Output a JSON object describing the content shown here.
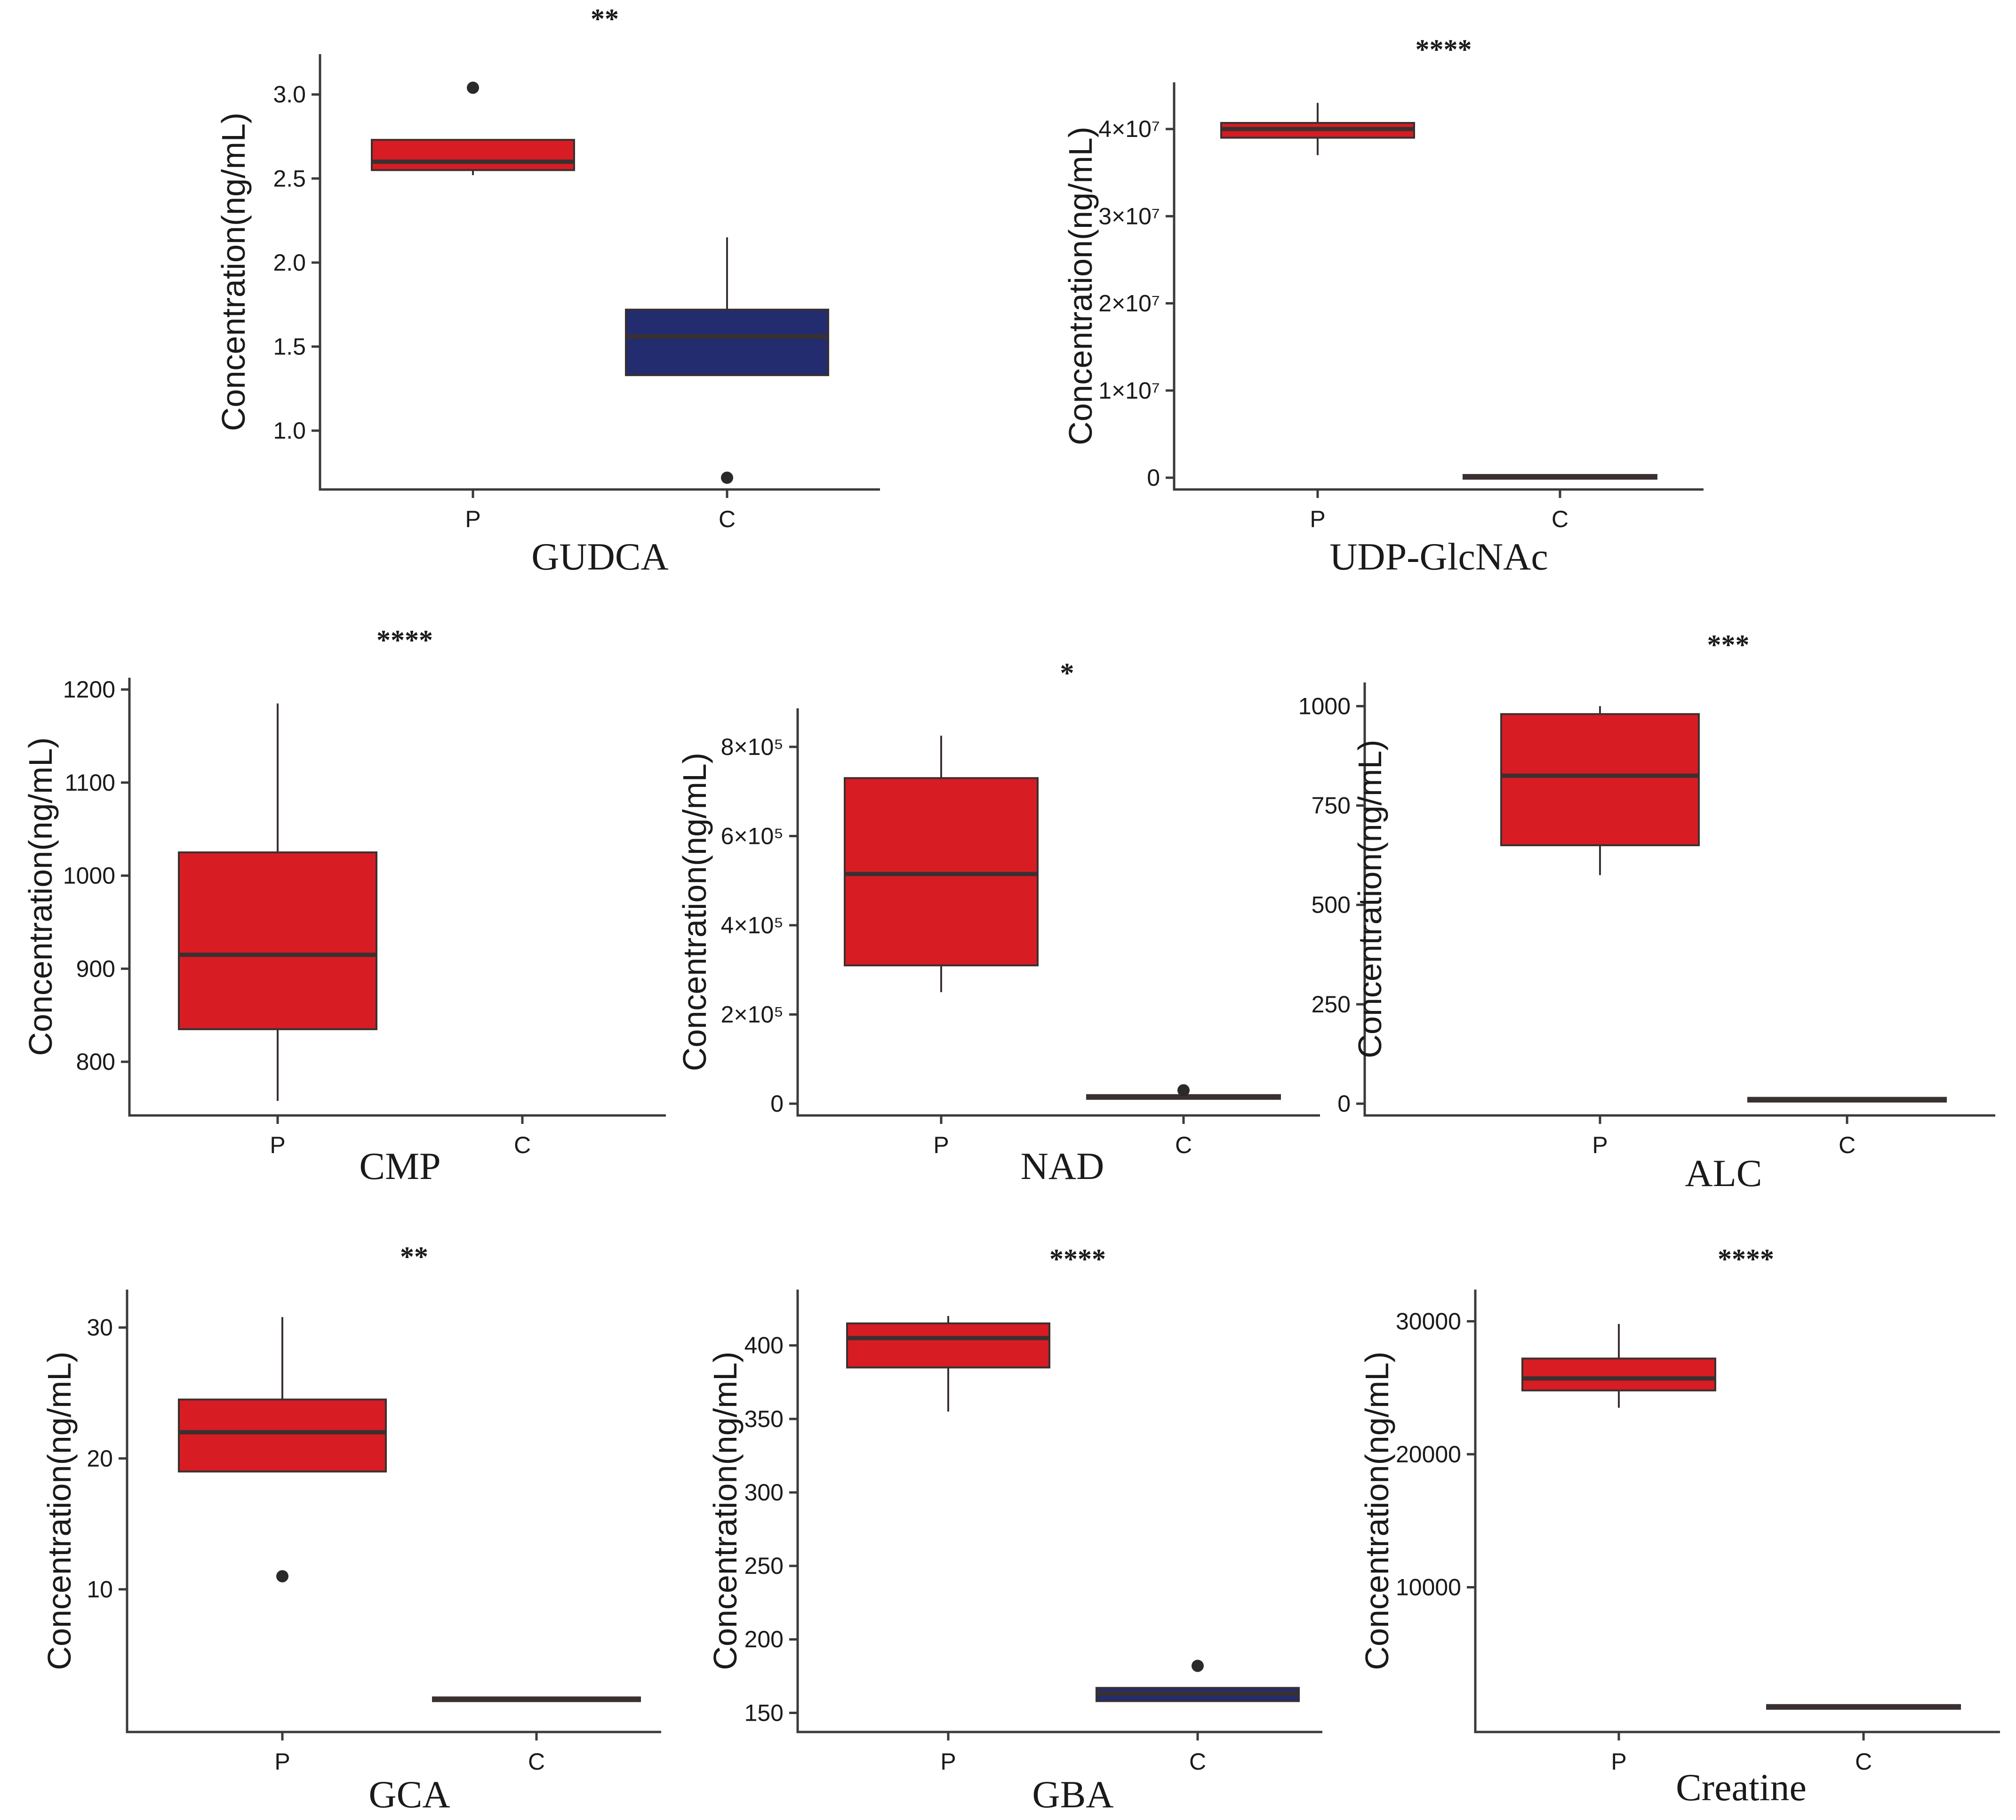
{
  "colors": {
    "P": "#d71c23",
    "C": "#232c6e",
    "median": "#3a3030",
    "outlier": "#2a2a2a",
    "axis": "#3a3a3a"
  },
  "chart_data": [
    {
      "type": "box",
      "title": "GUDCA",
      "ylabel": "Concentration(ng/mL)",
      "significance": "**",
      "categories": [
        "P",
        "C"
      ],
      "ylim": [
        0.72,
        3.17
      ],
      "yticks": [
        1.0,
        1.5,
        2.0,
        2.5,
        3.0
      ],
      "yticklabels": [
        "1.0",
        "1.5",
        "2.0",
        "2.5",
        "3.0"
      ],
      "boxes": [
        {
          "group": "P",
          "color": "#d71c23",
          "whisker_low": 2.52,
          "q1": 2.55,
          "median": 2.6,
          "q3": 2.73,
          "whisker_high": 2.73,
          "outliers": [
            3.04
          ]
        },
        {
          "group": "C",
          "color": "#232c6e",
          "whisker_low": 1.33,
          "q1": 1.33,
          "median": 1.56,
          "q3": 1.72,
          "whisker_high": 2.15,
          "outliers": [
            0.72
          ]
        }
      ]
    },
    {
      "type": "box",
      "title": "UDP-GlcNAc",
      "ylabel": "Concentration(ng/mL)",
      "significance": "****",
      "categories": [
        "P",
        "C"
      ],
      "ylim": [
        0,
        44000000
      ],
      "yticks": [
        0,
        10000000,
        20000000,
        30000000,
        40000000
      ],
      "yticklabels": [
        "0",
        "1×10⁷",
        "2×10⁷",
        "3×10⁷",
        "4×10⁷"
      ],
      "boxes": [
        {
          "group": "P",
          "color": "#d71c23",
          "whisker_low": 37000000,
          "q1": 39000000,
          "median": 40000000,
          "q3": 40700000,
          "whisker_high": 43000000,
          "outliers": []
        },
        {
          "group": "C",
          "color": "#232c6e",
          "whisker_low": 100000,
          "q1": 100000,
          "median": 100000,
          "q3": 100000,
          "whisker_high": 100000,
          "outliers": []
        }
      ]
    },
    {
      "type": "box",
      "title": "CMP",
      "ylabel": "Concentration(ng/mL)",
      "significance": "****",
      "categories": [
        "P",
        "C"
      ],
      "ylim": [
        755,
        1200
      ],
      "yticks": [
        800,
        900,
        1000,
        1100,
        1200
      ],
      "yticklabels": [
        "800",
        "900",
        "1000",
        "1100",
        "1200"
      ],
      "boxes": [
        {
          "group": "P",
          "color": "#d71c23",
          "whisker_low": 758,
          "q1": 835,
          "median": 915,
          "q3": 1025,
          "whisker_high": 1185,
          "outliers": []
        }
      ]
    },
    {
      "type": "box",
      "title": "NAD",
      "ylabel": "Concentration(ng/mL)",
      "significance": "*",
      "categories": [
        "P",
        "C"
      ],
      "ylim": [
        0,
        860000
      ],
      "yticks": [
        0,
        200000,
        400000,
        600000,
        800000
      ],
      "yticklabels": [
        "0",
        "2×10⁵",
        "4×10⁵",
        "6×10⁵",
        "8×10⁵"
      ],
      "boxes": [
        {
          "group": "P",
          "color": "#d71c23",
          "whisker_low": 250000,
          "q1": 310000,
          "median": 515000,
          "q3": 730000,
          "whisker_high": 825000,
          "outliers": []
        },
        {
          "group": "C",
          "color": "#232c6e",
          "whisker_low": 15000,
          "q1": 15000,
          "median": 15000,
          "q3": 15000,
          "whisker_high": 15000,
          "outliers": [
            30000
          ]
        }
      ]
    },
    {
      "type": "box",
      "title": "ALC",
      "ylabel": "Concentration(ng/mL)",
      "significance": "***",
      "categories": [
        "P",
        "C"
      ],
      "ylim": [
        0,
        1030
      ],
      "yticks": [
        0,
        250,
        500,
        750,
        1000
      ],
      "yticklabels": [
        "0",
        "250",
        "500",
        "750",
        "1000"
      ],
      "boxes": [
        {
          "group": "P",
          "color": "#d71c23",
          "whisker_low": 575,
          "q1": 650,
          "median": 825,
          "q3": 980,
          "whisker_high": 1000,
          "outliers": []
        },
        {
          "group": "C",
          "color": "#232c6e",
          "whisker_low": 10,
          "q1": 10,
          "median": 10,
          "q3": 10,
          "whisker_high": 10,
          "outliers": []
        }
      ]
    },
    {
      "type": "box",
      "title": "GCA",
      "ylabel": "Concentration(ng/mL)",
      "significance": "**",
      "categories": [
        "P",
        "C"
      ],
      "ylim": [
        0,
        32
      ],
      "yticks": [
        10,
        20,
        30
      ],
      "yticklabels": [
        "10",
        "20",
        "30"
      ],
      "boxes": [
        {
          "group": "P",
          "color": "#d71c23",
          "whisker_low": 19,
          "q1": 19,
          "median": 22,
          "q3": 24.5,
          "whisker_high": 30.8,
          "outliers": [
            11
          ]
        },
        {
          "group": "C",
          "color": "#232c6e",
          "whisker_low": 1.6,
          "q1": 1.6,
          "median": 1.6,
          "q3": 1.6,
          "whisker_high": 1.6,
          "outliers": []
        }
      ]
    },
    {
      "type": "box",
      "title": "GBA",
      "ylabel": "Concentration(ng/mL)",
      "significance": "****",
      "categories": [
        "P",
        "C"
      ],
      "ylim": [
        145,
        430
      ],
      "yticks": [
        150,
        200,
        250,
        300,
        350,
        400
      ],
      "yticklabels": [
        "150",
        "200",
        "250",
        "300",
        "350",
        "400"
      ],
      "boxes": [
        {
          "group": "P",
          "color": "#d71c23",
          "whisker_low": 355,
          "q1": 385,
          "median": 405,
          "q3": 415,
          "whisker_high": 420,
          "outliers": []
        },
        {
          "group": "C",
          "color": "#232c6e",
          "whisker_low": 158,
          "q1": 158,
          "median": 163,
          "q3": 167,
          "whisker_high": 167,
          "outliers": [
            182
          ]
        }
      ]
    },
    {
      "type": "box",
      "title": "Creatine",
      "ylabel": "Concentration(ng/mL)",
      "significance": "****",
      "categories": [
        "P",
        "C"
      ],
      "ylim": [
        0,
        31500
      ],
      "yticks": [
        10000,
        20000,
        30000
      ],
      "yticklabels": [
        "10000",
        "20000",
        "30000"
      ],
      "boxes": [
        {
          "group": "P",
          "color": "#d71c23",
          "whisker_low": 23500,
          "q1": 24800,
          "median": 25700,
          "q3": 27200,
          "whisker_high": 29800,
          "outliers": []
        },
        {
          "group": "C",
          "color": "#232c6e",
          "whisker_low": 1000,
          "q1": 1000,
          "median": 1000,
          "q3": 1000,
          "whisker_high": 1000,
          "outliers": []
        }
      ]
    }
  ]
}
